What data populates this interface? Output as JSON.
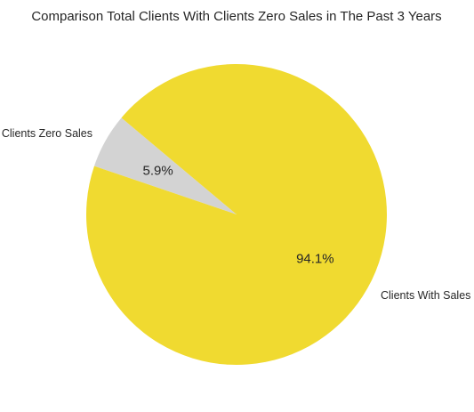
{
  "chart_data": {
    "type": "pie",
    "title": "Comparison Total Clients With Clients Zero Sales in The Past 3 Years",
    "slices": [
      {
        "label": "Clients Zero Sales",
        "value": 5.9,
        "pct_label": "5.9%",
        "color": "#d3d3d3"
      },
      {
        "label": "Clients With Sales",
        "value": 94.1,
        "pct_label": "94.1%",
        "color": "#f0da30"
      }
    ],
    "start_angle_deg": 140,
    "direction": "counterclockwise"
  }
}
